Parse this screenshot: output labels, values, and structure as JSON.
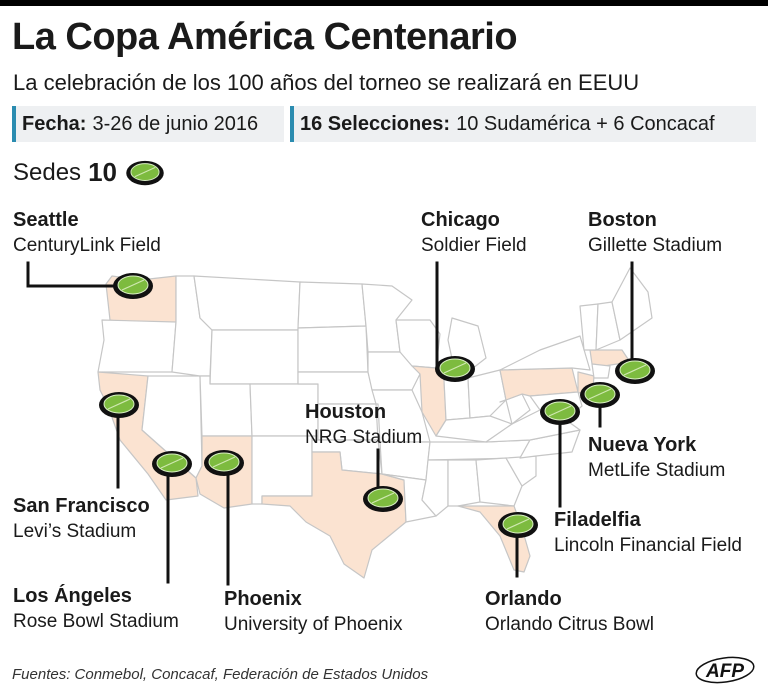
{
  "header": {
    "title": "La Copa América Centenario",
    "subtitle": "La celebración de los 100 años del torneo se realizará en EEUU"
  },
  "info": {
    "fecha_label": "Fecha:",
    "fecha_value": "3-26 de junio 2016",
    "selecciones_label": "16 Selecciones:",
    "selecciones_value": "10 Sudamérica + 6 Concacaf"
  },
  "sedes": {
    "label": "Sedes",
    "count": "10",
    "icon": "stadium-icon"
  },
  "venues": [
    {
      "city": "Seattle",
      "stadium": "CenturyLink Field"
    },
    {
      "city": "Chicago",
      "stadium": "Soldier Field"
    },
    {
      "city": "Boston",
      "stadium": "Gillette Stadium"
    },
    {
      "city": "Houston",
      "stadium": "NRG Stadium"
    },
    {
      "city": "Nueva York",
      "stadium": "MetLife Stadium"
    },
    {
      "city": "San Francisco",
      "stadium": "Levi’s Stadium"
    },
    {
      "city": "Filadelfia",
      "stadium": "Lincoln Financial Field"
    },
    {
      "city": "Los Ángeles",
      "stadium": "Rose Bowl Stadium"
    },
    {
      "city": "Phoenix",
      "stadium": "University of Phoenix"
    },
    {
      "city": "Orlando",
      "stadium": "Orlando Citrus Bowl"
    }
  ],
  "colors": {
    "host_state": "#fbe3d1",
    "state": "#ffffff",
    "border": "#c6c6c6",
    "stadium_field": "#7dbb3f",
    "info_bar": "#2b8cb0"
  },
  "footer": {
    "source": "Fuentes: Conmebol, Concacaf, Federación de Estados Unidos",
    "logo": "AFP"
  }
}
